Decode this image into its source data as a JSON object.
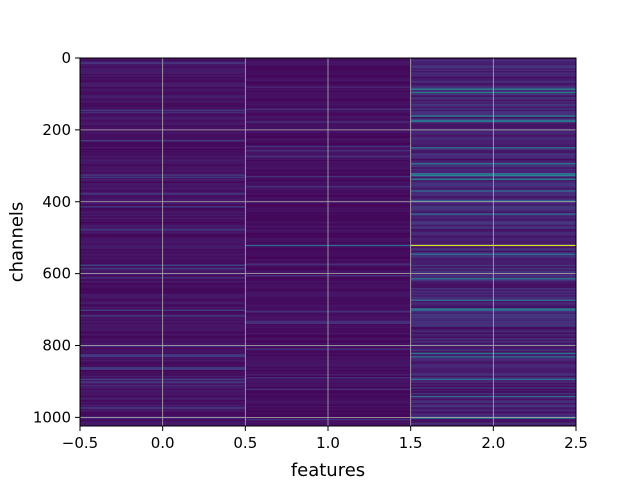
{
  "chart_data": {
    "type": "heatmap",
    "title": "",
    "xlabel": "features",
    "ylabel": "channels",
    "xlim": [
      -0.5,
      2.5
    ],
    "ylim": [
      1024,
      0
    ],
    "y_inverted": true,
    "grid": true,
    "colormap": "viridis",
    "n_channels": 1024,
    "n_features": 3,
    "columns": [
      {
        "feature": 0,
        "base_level": 0.05,
        "highlights": [
          {
            "channel": 150,
            "value": 0.12
          },
          {
            "channel": 330,
            "value": 0.2
          },
          {
            "channel": 575,
            "value": 0.25
          },
          {
            "channel": 610,
            "value": 0.15
          },
          {
            "channel": 800,
            "value": 0.15
          },
          {
            "channel": 910,
            "value": 0.12
          },
          {
            "channel": 1000,
            "value": 0.12
          }
        ]
      },
      {
        "feature": 1,
        "base_level": 0.04,
        "highlights": [
          {
            "channel": 80,
            "value": 0.1
          },
          {
            "channel": 520,
            "value": 0.35
          },
          {
            "channel": 880,
            "value": 0.1
          }
        ]
      },
      {
        "feature": 2,
        "base_level": 0.1,
        "highlights": [
          {
            "channel": 85,
            "value": 0.5
          },
          {
            "channel": 95,
            "value": 0.45
          },
          {
            "channel": 160,
            "value": 0.45
          },
          {
            "channel": 175,
            "value": 0.4
          },
          {
            "channel": 325,
            "value": 0.45
          },
          {
            "channel": 335,
            "value": 0.4
          },
          {
            "channel": 520,
            "value": 0.95
          },
          {
            "channel": 700,
            "value": 0.4
          },
          {
            "channel": 820,
            "value": 0.45
          },
          {
            "channel": 830,
            "value": 0.4
          },
          {
            "channel": 940,
            "value": 0.35
          },
          {
            "channel": 1000,
            "value": 0.45
          }
        ]
      }
    ],
    "x_ticks": [
      -0.5,
      0.0,
      0.5,
      1.0,
      1.5,
      2.0,
      2.5
    ],
    "x_tick_labels": [
      "−0.5",
      "0.0",
      "0.5",
      "1.0",
      "1.5",
      "2.0",
      "2.5"
    ],
    "y_ticks": [
      0,
      200,
      400,
      600,
      800,
      1000
    ],
    "y_tick_labels": [
      "0",
      "200",
      "400",
      "600",
      "800",
      "1000"
    ]
  }
}
